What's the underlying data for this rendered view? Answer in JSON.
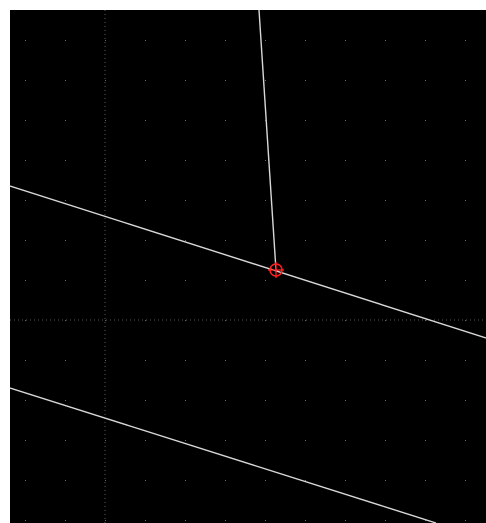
{
  "canvas": {
    "background": "#000000",
    "frame_color": "#ffffff",
    "grid_dot_color": "#6a6a6a",
    "axis_line_color": "#5a5a5a",
    "line_color": "#d8d8d8",
    "snap_marker_color": "#ff2020",
    "grid_visible": true,
    "axes_visible": true,
    "snap_marker_icon": "crosshair-circle-icon"
  }
}
